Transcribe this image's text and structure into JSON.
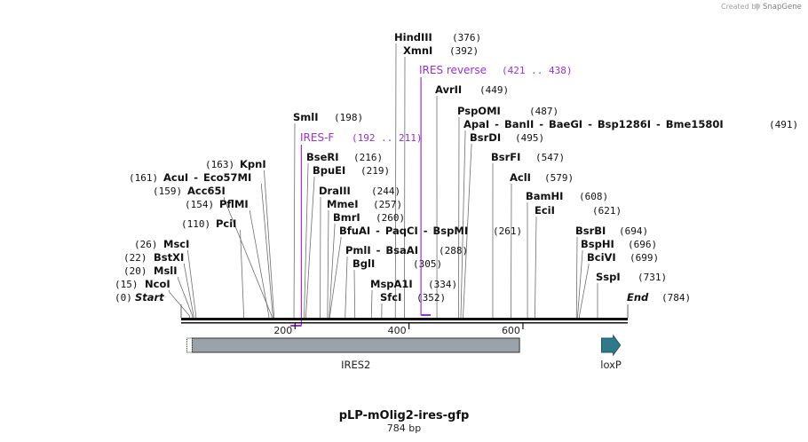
{
  "credit": {
    "prefix": "Created by",
    "brand": "SnapGene"
  },
  "map": {
    "title": "pLP-mOlig2-ires-gfp",
    "length_label": "784 bp",
    "total_bp": 784,
    "start_label": "Start",
    "start_pos": "(0)",
    "end_label": "End",
    "end_pos": "(784)"
  },
  "sites": [
    {
      "names": [
        "HindIII"
      ],
      "pos_label": "(376)",
      "bp": 376
    },
    {
      "names": [
        "XmnI"
      ],
      "pos_label": "(392)",
      "bp": 392
    },
    {
      "names": [
        "AvrII"
      ],
      "pos_label": "(449)",
      "bp": 449
    },
    {
      "names": [
        "PspOMI"
      ],
      "pos_label": "(487)",
      "bp": 487
    },
    {
      "names": [
        "ApaI",
        "BanII",
        "BaeGI",
        "Bsp1286I",
        "Bme1580I"
      ],
      "pos_label": "(491)",
      "bp": 491
    },
    {
      "names": [
        "BsrDI"
      ],
      "pos_label": "(495)",
      "bp": 495
    },
    {
      "names": [
        "SmlI"
      ],
      "pos_label": "(198)",
      "bp": 198
    },
    {
      "names": [
        "BsrFI"
      ],
      "pos_label": "(547)",
      "bp": 547
    },
    {
      "names": [
        "BseRI"
      ],
      "pos_label": "(216)",
      "bp": 216
    },
    {
      "names": [
        "KpnI"
      ],
      "pos_label": "(163)",
      "bp": 163
    },
    {
      "names": [
        "BpuEI"
      ],
      "pos_label": "(219)",
      "bp": 219
    },
    {
      "names": [
        "AcuI",
        "Eco57MI"
      ],
      "pos_label": "(161)",
      "bp": 161
    },
    {
      "names": [
        "AclI"
      ],
      "pos_label": "(579)",
      "bp": 579
    },
    {
      "names": [
        "Acc65I"
      ],
      "pos_label": "(159)",
      "bp": 159
    },
    {
      "names": [
        "DraIII"
      ],
      "pos_label": "(244)",
      "bp": 244
    },
    {
      "names": [
        "BamHI"
      ],
      "pos_label": "(608)",
      "bp": 608
    },
    {
      "names": [
        "PflMI"
      ],
      "pos_label": "(154)",
      "bp": 154
    },
    {
      "names": [
        "MmeI"
      ],
      "pos_label": "(257)",
      "bp": 257
    },
    {
      "names": [
        "EciI"
      ],
      "pos_label": "(621)",
      "bp": 621
    },
    {
      "names": [
        "BmrI"
      ],
      "pos_label": "(260)",
      "bp": 260
    },
    {
      "names": [
        "PciI"
      ],
      "pos_label": "(110)",
      "bp": 110
    },
    {
      "names": [
        "BfuAI",
        "PaqCI",
        "BspMI"
      ],
      "pos_label": "(261)",
      "bp": 261
    },
    {
      "names": [
        "BsrBI"
      ],
      "pos_label": "(694)",
      "bp": 694
    },
    {
      "names": [
        "MscI"
      ],
      "pos_label": "(26)",
      "bp": 26
    },
    {
      "names": [
        "BspHI"
      ],
      "pos_label": "(696)",
      "bp": 696
    },
    {
      "names": [
        "PmlI",
        "BsaAI"
      ],
      "pos_label": "(288)",
      "bp": 288
    },
    {
      "names": [
        "BstXI"
      ],
      "pos_label": "(22)",
      "bp": 22
    },
    {
      "names": [
        "BciVI"
      ],
      "pos_label": "(699)",
      "bp": 699
    },
    {
      "names": [
        "MslI"
      ],
      "pos_label": "(20)",
      "bp": 20
    },
    {
      "names": [
        "BglI"
      ],
      "pos_label": "(305)",
      "bp": 305
    },
    {
      "names": [
        "SspI"
      ],
      "pos_label": "(731)",
      "bp": 731
    },
    {
      "names": [
        "NcoI"
      ],
      "pos_label": "(15)",
      "bp": 15
    },
    {
      "names": [
        "MspA1I"
      ],
      "pos_label": "(334)",
      "bp": 334
    },
    {
      "names": [
        "SfcI"
      ],
      "pos_label": "(352)",
      "bp": 352
    }
  ],
  "primers": [
    {
      "name": "IRES reverse",
      "range": "(421 .. 438)",
      "start": 421,
      "end": 438,
      "direction": "reverse",
      "color": "#9b30d9"
    },
    {
      "name": "IRES-F",
      "range": "(192 .. 211)",
      "start": 192,
      "end": 211,
      "direction": "forward",
      "color": "#9b30d9"
    }
  ],
  "ticks": [
    {
      "label": "200",
      "bp": 200
    },
    {
      "label": "400",
      "bp": 400
    },
    {
      "label": "600",
      "bp": 600
    }
  ],
  "features": [
    {
      "name": "IRES2",
      "start": 10,
      "end": 594,
      "shape": "box",
      "color": "#9aa3aa"
    },
    {
      "name": "loxP",
      "start": 738,
      "end": 771,
      "shape": "arrow",
      "color": "#2e7a8a"
    }
  ]
}
